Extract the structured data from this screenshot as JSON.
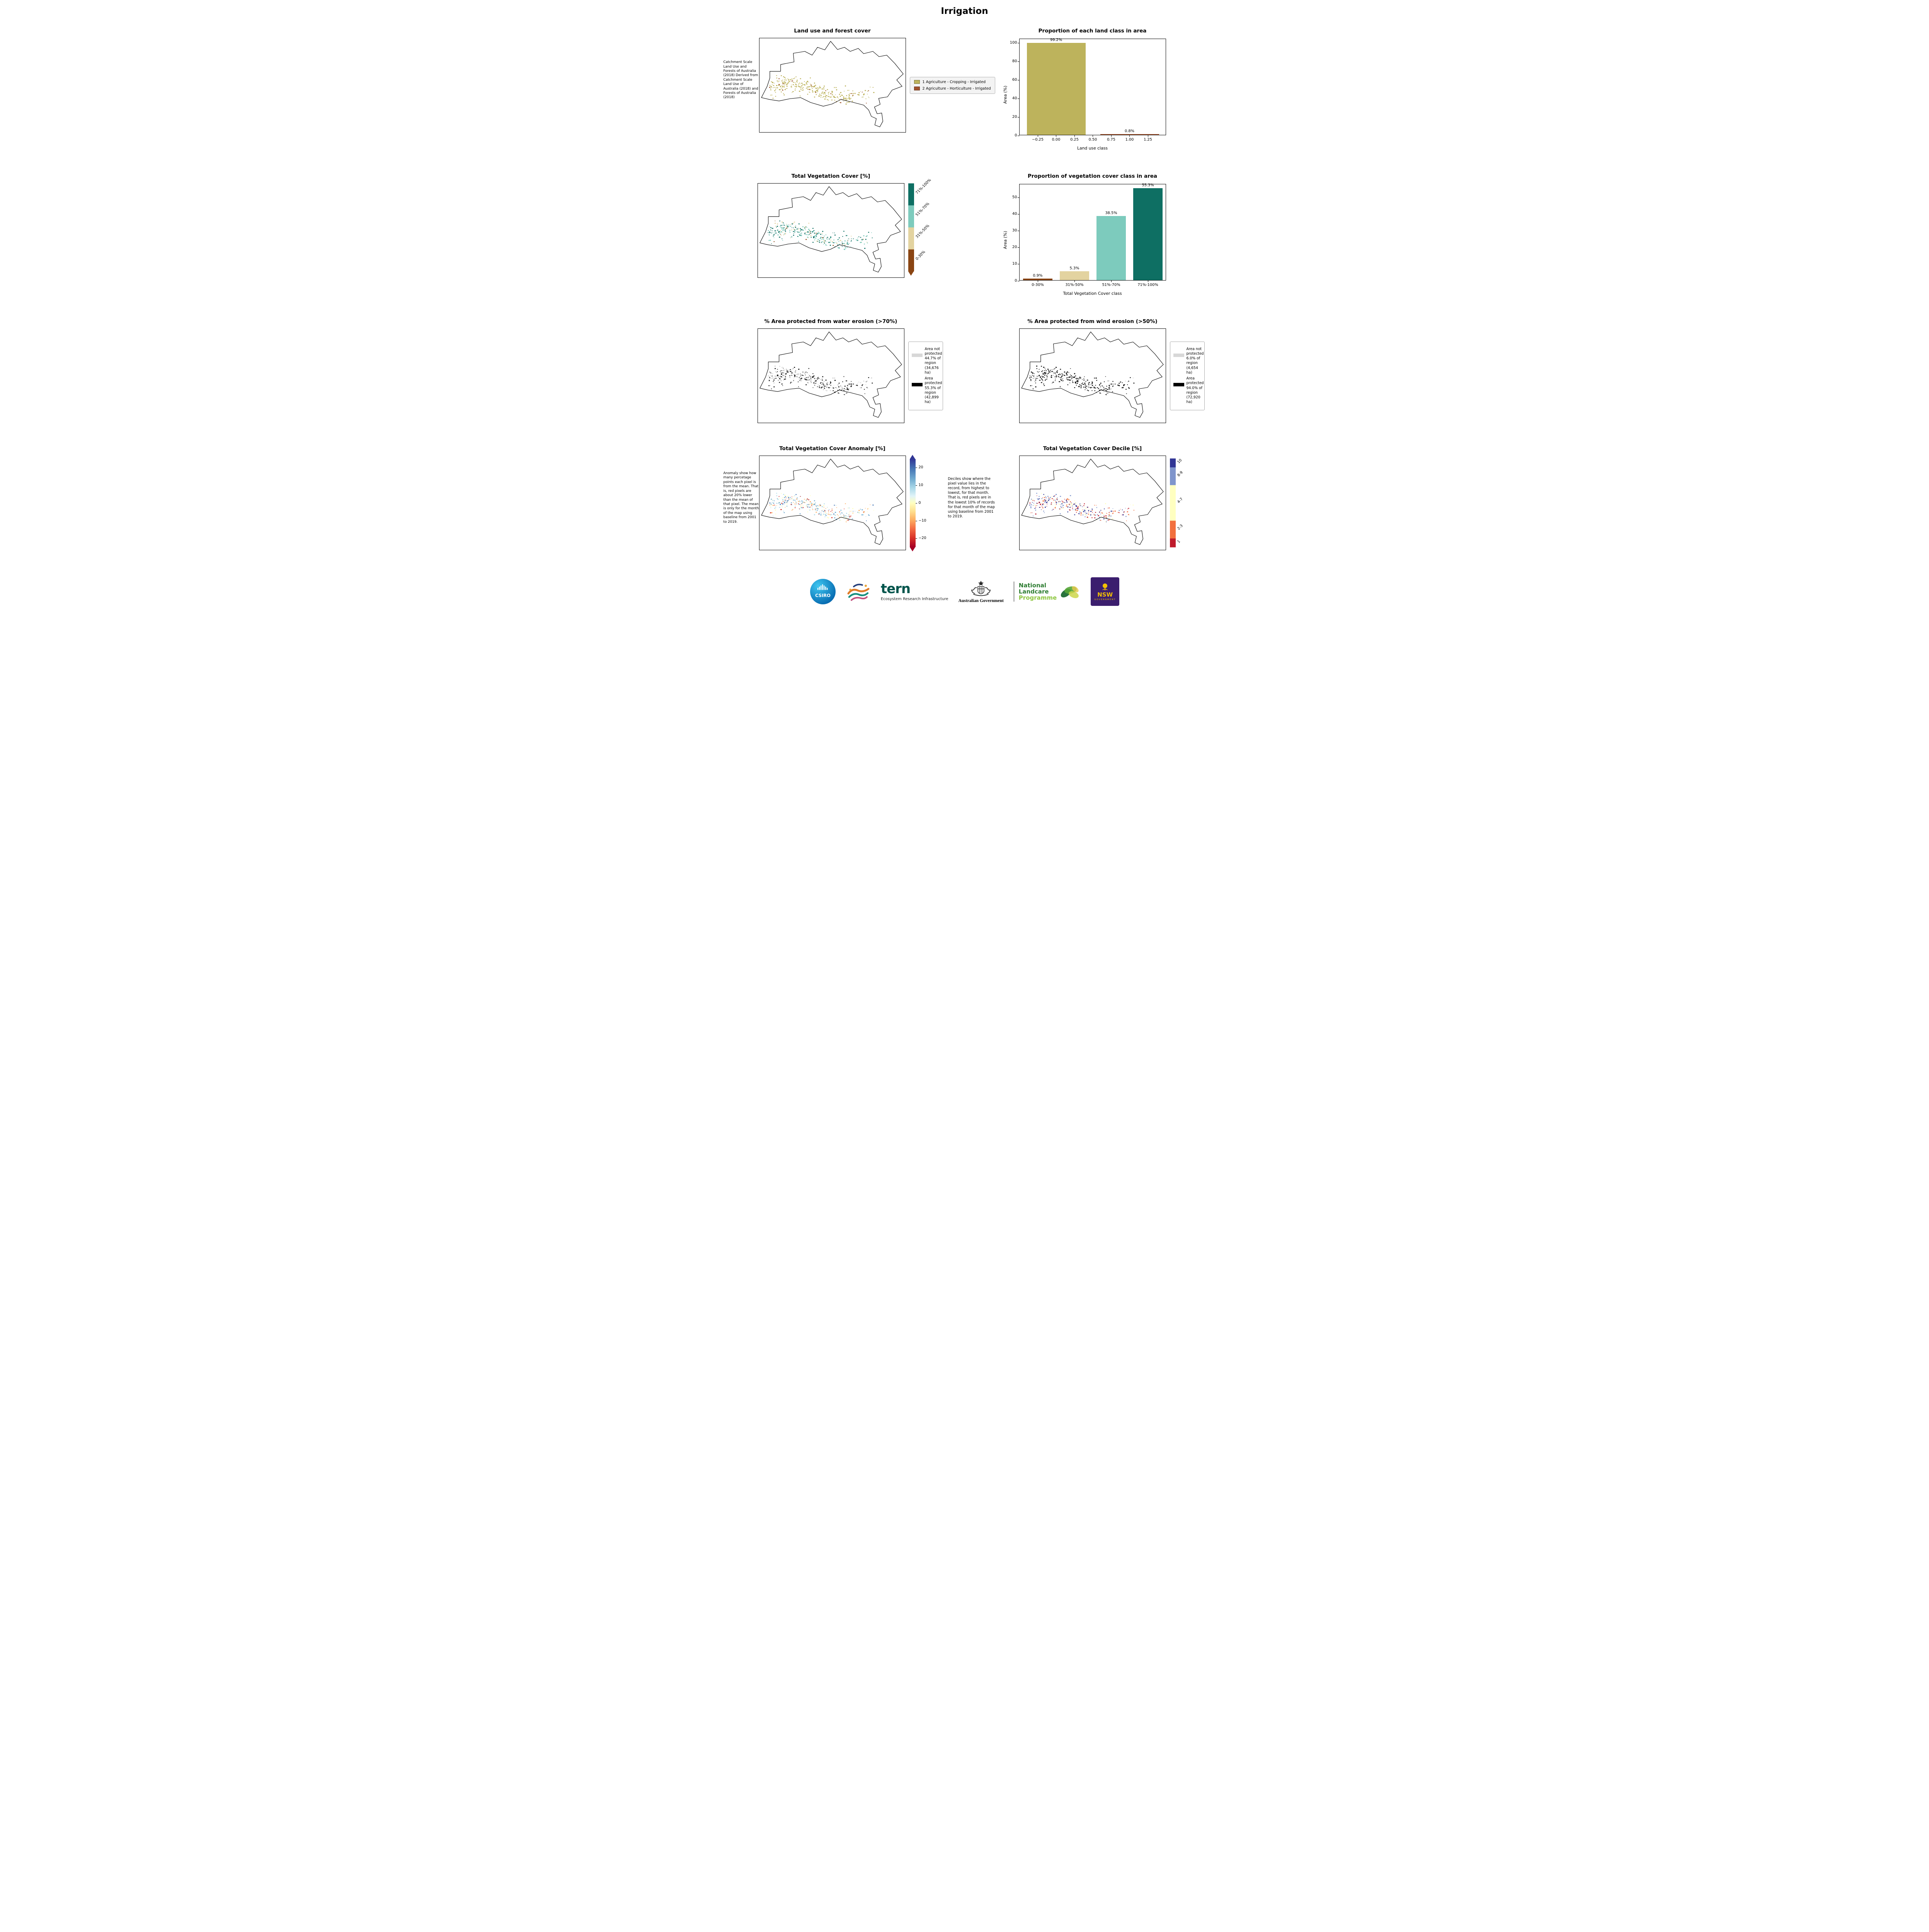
{
  "page_title": "Irrigation",
  "maps": {
    "land_use": {
      "title": "Land use and forest cover",
      "side_text": "Catchment Scale Land Use and Forests of Australia (2018) Derived from Catchment Scale Land Use of Australia (2018) and Forests of Australia (2018)",
      "legend": [
        {
          "label": "1 Agriculture - Cropping - Irrigated",
          "color": "#bdb35c"
        },
        {
          "label": "2 Agriculture - Horticulture - Irrigated",
          "color": "#a0522d"
        }
      ],
      "dot_colors": [
        {
          "color": "#bdb35c",
          "weight": 0.93
        },
        {
          "color": "#a0522d",
          "weight": 0.07
        }
      ]
    },
    "veg_cover": {
      "title": "Total Vegetation Cover [%]",
      "colorbar_labels": [
        "71%-100%",
        "51%-70%",
        "31%-50%",
        "0-30%"
      ],
      "colorbar_colors": [
        "#0e6f63",
        "#7dcbbd",
        "#e3d3a0",
        "#8a4513"
      ],
      "dot_colors": [
        {
          "color": "#0e6f63",
          "weight": 0.42
        },
        {
          "color": "#7dcbbd",
          "weight": 0.4
        },
        {
          "color": "#e3d3a0",
          "weight": 0.15
        },
        {
          "color": "#8a4513",
          "weight": 0.03
        }
      ]
    },
    "water_erosion": {
      "title": "% Area protected from water erosion (>70%)",
      "legend": [
        {
          "label": "Area not protected 44.7% of region (34,676 ha)",
          "color": "#d8d8d8"
        },
        {
          "label": "Area protected 55.3% of region (42,899 ha)",
          "color": "#000000"
        }
      ],
      "dot_colors": [
        {
          "color": "#1a1a1a",
          "weight": 0.58
        },
        {
          "color": "#cfcfcf",
          "weight": 0.42
        }
      ]
    },
    "wind_erosion": {
      "title": "% Area protected from wind erosion (>50%)",
      "legend": [
        {
          "label": "Area not protected 6.0% of region (4,654 ha)",
          "color": "#d8d8d8"
        },
        {
          "label": "Area protected 94.0% of region (72,920 ha)",
          "color": "#000000"
        }
      ],
      "dot_colors": [
        {
          "color": "#1a1a1a",
          "weight": 0.92
        },
        {
          "color": "#cfcfcf",
          "weight": 0.08
        }
      ]
    },
    "anomaly": {
      "title": "Total Vegetation Cover Anomaly [%]",
      "side_text": "Anomaly show how many percetage points each pixel is from the mean. That is, red pixels are about 20% lower than the mean of that pixel. The mean is only for the month of the map using baseline from 2001 to 2019.",
      "colorbar_ticks": [
        "20",
        "10",
        "0",
        "−10",
        "−20"
      ],
      "dot_colors": [
        {
          "color": "#74add1",
          "weight": 0.24
        },
        {
          "color": "#abd9e9",
          "weight": 0.2
        },
        {
          "color": "#ffffbf",
          "weight": 0.16
        },
        {
          "color": "#fdae61",
          "weight": 0.18
        },
        {
          "color": "#d73027",
          "weight": 0.13
        },
        {
          "color": "#4575b4",
          "weight": 0.09
        }
      ]
    },
    "decile": {
      "title": "Total Vegetation Cover Decile [%]",
      "side_text": "Deciles show where the pixel value lies in the record, from highest to lowest, for that month. That is, red pixels are in the lowest 10% of records for that month of the map using baseline from 2001 to 2019.",
      "colorbar_labels": [
        "10",
        "8-9",
        "4-7",
        "2-3",
        "1"
      ],
      "colorbar_colors": [
        "#313695",
        "#7f95cc",
        "#ffffc0",
        "#f2703e",
        "#bf1b2c"
      ],
      "dot_colors": [
        {
          "color": "#313695",
          "weight": 0.22
        },
        {
          "color": "#7f95cc",
          "weight": 0.2
        },
        {
          "color": "#ffffc0",
          "weight": 0.18
        },
        {
          "color": "#f2703e",
          "weight": 0.2
        },
        {
          "color": "#bf1b2c",
          "weight": 0.2
        }
      ]
    }
  },
  "chart_data": [
    {
      "type": "bar",
      "title": "Proportion of each land class in area",
      "xlabel": "Land use class",
      "ylabel": "Area (%)",
      "x": [
        0,
        1
      ],
      "values": [
        99.2,
        0.8
      ],
      "bar_labels": [
        "99.2%",
        "0.8%"
      ],
      "bar_colors": [
        "#bdb35c",
        "#a0522d"
      ],
      "bar_width": 0.8,
      "xlim": [
        -0.5,
        1.5
      ],
      "ylim": [
        0,
        104.2
      ],
      "xticks": [
        -0.25,
        0,
        0.25,
        0.5,
        0.75,
        1,
        1.25
      ],
      "xtick_labels": [
        "−0.25",
        "0.00",
        "0.25",
        "0.50",
        "0.75",
        "1.00",
        "1.25"
      ],
      "yticks": [
        0,
        20,
        40,
        60,
        80,
        100
      ],
      "grid": false,
      "legend_position": "none"
    },
    {
      "type": "bar",
      "title": "Proportion of vegetation cover class in area",
      "xlabel": "Total Vegetation Cover class",
      "ylabel": "Area (%)",
      "categories": [
        "0-30%",
        "31%-50%",
        "51%-70%",
        "71%-100%"
      ],
      "values": [
        0.9,
        5.3,
        38.5,
        55.3
      ],
      "bar_labels": [
        "0.9%",
        "5.3%",
        "38.5%",
        "55.3%"
      ],
      "bar_colors": [
        "#8a4513",
        "#e3d3a0",
        "#7dcbbd",
        "#0e6f63"
      ],
      "bar_width": 0.8,
      "ylim": [
        0,
        58.1
      ],
      "yticks": [
        0,
        10,
        20,
        30,
        40,
        50
      ],
      "grid": false,
      "legend_position": "none"
    }
  ],
  "footer": {
    "csiro": "CSIRO",
    "tern": "tern",
    "tern_sub": "Ecosystem Research Infrastructure",
    "aus_gov": "Australian Government",
    "nlp_line1": "National",
    "nlp_line2": "Landcare",
    "nlp_line3": "Programme",
    "nsw": "NSW",
    "nsw_sub": "GOVERNMENT"
  }
}
